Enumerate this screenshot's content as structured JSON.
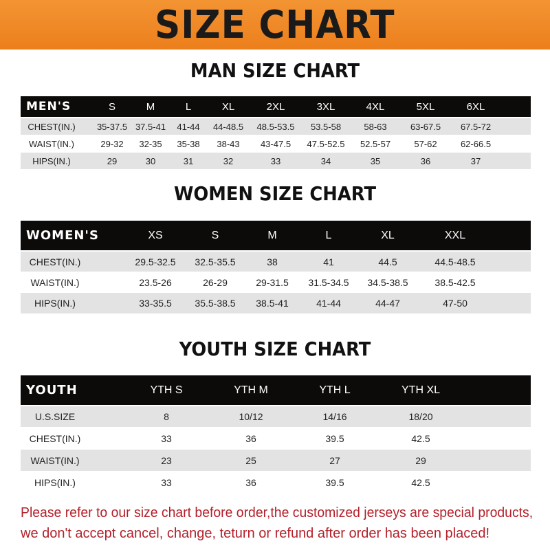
{
  "banner": {
    "title": "SIZE CHART",
    "color": "#ef8a27"
  },
  "men": {
    "title": "MAN SIZE CHART",
    "header": "MEN'S",
    "sizes": [
      "S",
      "M",
      "L",
      "XL",
      "2XL",
      "3XL",
      "4XL",
      "5XL",
      "6XL"
    ],
    "rows": [
      {
        "label": "CHEST(IN.)",
        "values": [
          "35-37.5",
          "37.5-41",
          "41-44",
          "44-48.5",
          "48.5-53.5",
          "53.5-58",
          "58-63",
          "63-67.5",
          "67.5-72"
        ]
      },
      {
        "label": "WAIST(IN.)",
        "values": [
          "29-32",
          "32-35",
          "35-38",
          "38-43",
          "43-47.5",
          "47.5-52.5",
          "52.5-57",
          "57-62",
          "62-66.5"
        ]
      },
      {
        "label": "HIPS(IN.)",
        "values": [
          "29",
          "30",
          "31",
          "32",
          "33",
          "34",
          "35",
          "36",
          "37"
        ]
      }
    ]
  },
  "women": {
    "title": "WOMEN SIZE CHART",
    "header": "WOMEN'S",
    "sizes": [
      "XS",
      "S",
      "M",
      "L",
      "XL",
      "XXL"
    ],
    "rows": [
      {
        "label": "CHEST(IN.)",
        "values": [
          "29.5-32.5",
          "32.5-35.5",
          "38",
          "41",
          "44.5",
          "44.5-48.5"
        ]
      },
      {
        "label": "WAIST(IN.)",
        "values": [
          "23.5-26",
          "26-29",
          "29-31.5",
          "31.5-34.5",
          "34.5-38.5",
          "38.5-42.5"
        ]
      },
      {
        "label": "HIPS(IN.)",
        "values": [
          "33-35.5",
          "35.5-38.5",
          "38.5-41",
          "41-44",
          "44-47",
          "47-50"
        ]
      }
    ]
  },
  "youth": {
    "title": "YOUTH SIZE CHART",
    "header": "YOUTH",
    "sizes": [
      "YTH S",
      "YTH M",
      "YTH L",
      "YTH XL"
    ],
    "rows": [
      {
        "label": "U.S.SIZE",
        "values": [
          "8",
          "10/12",
          "14/16",
          "18/20"
        ]
      },
      {
        "label": "CHEST(IN.)",
        "values": [
          "33",
          "36",
          "39.5",
          "42.5"
        ]
      },
      {
        "label": "WAIST(IN.)",
        "values": [
          "23",
          "25",
          "27",
          "29"
        ]
      },
      {
        "label": "HIPS(IN.)",
        "values": [
          "33",
          "36",
          "39.5",
          "42.5"
        ]
      }
    ]
  },
  "footer": {
    "line1": "Please refer to our size chart before order,the customized jerseys are special products,",
    "line2": "we don't accept cancel, change, teturn or refund after order has been placed!",
    "color": "#b3202a"
  }
}
